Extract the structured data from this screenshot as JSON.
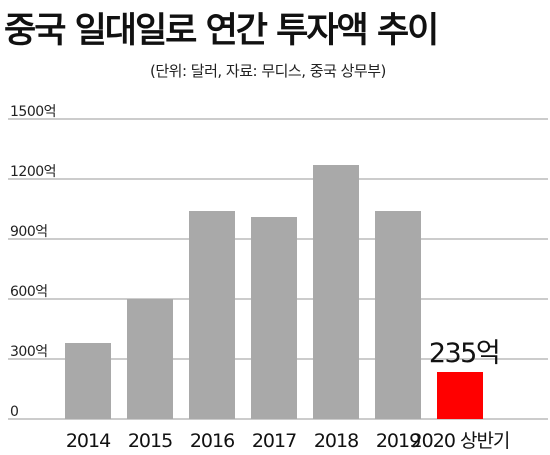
{
  "header": {
    "title": "중국 일대일로 연간 투자액 추이",
    "subtitle": "(단위: 달러, 자료: 무디스, 중국 상무부)"
  },
  "chart_data": {
    "type": "bar",
    "categories": [
      "2014",
      "2015",
      "2016",
      "2017",
      "2018",
      "2019",
      "2020 상반기"
    ],
    "values": [
      380,
      600,
      1040,
      1010,
      1270,
      1040,
      235
    ],
    "colors": [
      "#a9a9a9",
      "#a9a9a9",
      "#a9a9a9",
      "#a9a9a9",
      "#a9a9a9",
      "#a9a9a9",
      "#ff0000"
    ],
    "ylim": [
      0,
      1500
    ],
    "yticks": [
      0,
      300,
      600,
      900,
      1200,
      1500
    ],
    "ytick_labels": [
      "0",
      "300억",
      "600억",
      "900억",
      "1200억",
      "1500억"
    ],
    "grid": true,
    "annotations": [
      {
        "category": "2020 상반기",
        "text": "235억"
      }
    ]
  }
}
